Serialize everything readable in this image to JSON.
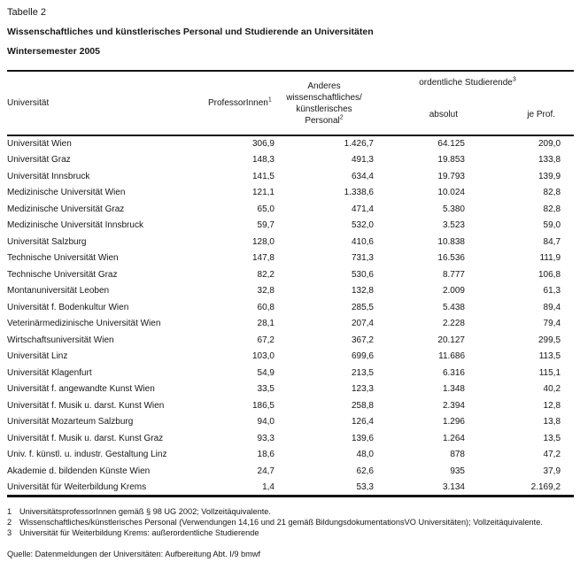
{
  "document": {
    "table_label": "Tabelle 2",
    "title": "Wissenschaftliches und künstlerisches Personal und Studierende an Universitäten",
    "subtitle": "Wintersemester 2005"
  },
  "table": {
    "columns": {
      "university": "Universität",
      "professors": "ProfessorInnen",
      "professors_sup": "1",
      "other_staff_lines": [
        "Anderes",
        "wissenschaftliches/",
        "künstlerisches",
        "Personal"
      ],
      "other_staff_sup": "2",
      "students_group": "ordentliche Studierende",
      "students_group_sup": "3",
      "students_absolut": "absolut",
      "students_je_prof": "je Prof."
    },
    "rows": [
      {
        "name": "Universität Wien",
        "professors": "306,9",
        "other_staff": "1.426,7",
        "students_absolut": "64.125",
        "students_je_prof": "209,0"
      },
      {
        "name": "Universität Graz",
        "professors": "148,3",
        "other_staff": "491,3",
        "students_absolut": "19.853",
        "students_je_prof": "133,8"
      },
      {
        "name": "Universität Innsbruck",
        "professors": "141,5",
        "other_staff": "634,4",
        "students_absolut": "19.793",
        "students_je_prof": "139,9"
      },
      {
        "name": "Medizinische Universität Wien",
        "professors": "121,1",
        "other_staff": "1.338,6",
        "students_absolut": "10.024",
        "students_je_prof": "82,8"
      },
      {
        "name": "Medizinische Universität Graz",
        "professors": "65,0",
        "other_staff": "471,4",
        "students_absolut": "5.380",
        "students_je_prof": "82,8"
      },
      {
        "name": "Medizinische Universität Innsbruck",
        "professors": "59,7",
        "other_staff": "532,0",
        "students_absolut": "3.523",
        "students_je_prof": "59,0"
      },
      {
        "name": "Universität Salzburg",
        "professors": "128,0",
        "other_staff": "410,6",
        "students_absolut": "10.838",
        "students_je_prof": "84,7"
      },
      {
        "name": "Technische Universität Wien",
        "professors": "147,8",
        "other_staff": "731,3",
        "students_absolut": "16.536",
        "students_je_prof": "111,9"
      },
      {
        "name": "Technische Universität Graz",
        "professors": "82,2",
        "other_staff": "530,6",
        "students_absolut": "8.777",
        "students_je_prof": "106,8"
      },
      {
        "name": "Montanuniversität Leoben",
        "professors": "32,8",
        "other_staff": "132,8",
        "students_absolut": "2.009",
        "students_je_prof": "61,3"
      },
      {
        "name": "Universität f. Bodenkultur Wien",
        "professors": "60,8",
        "other_staff": "285,5",
        "students_absolut": "5.438",
        "students_je_prof": "89,4"
      },
      {
        "name": "Veterinärmedizinische Universität Wien",
        "professors": "28,1",
        "other_staff": "207,4",
        "students_absolut": "2.228",
        "students_je_prof": "79,4"
      },
      {
        "name": "Wirtschaftsuniversität Wien",
        "professors": "67,2",
        "other_staff": "367,2",
        "students_absolut": "20.127",
        "students_je_prof": "299,5"
      },
      {
        "name": "Universität Linz",
        "professors": "103,0",
        "other_staff": "699,6",
        "students_absolut": "11.686",
        "students_je_prof": "113,5"
      },
      {
        "name": "Universität Klagenfurt",
        "professors": "54,9",
        "other_staff": "213,5",
        "students_absolut": "6.316",
        "students_je_prof": "115,1"
      },
      {
        "name": "Universität f. angewandte Kunst Wien",
        "professors": "33,5",
        "other_staff": "123,3",
        "students_absolut": "1.348",
        "students_je_prof": "40,2"
      },
      {
        "name": "Universität f. Musik u. darst. Kunst Wien",
        "professors": "186,5",
        "other_staff": "258,8",
        "students_absolut": "2.394",
        "students_je_prof": "12,8"
      },
      {
        "name": "Universität Mozarteum Salzburg",
        "professors": "94,0",
        "other_staff": "126,4",
        "students_absolut": "1.296",
        "students_je_prof": "13,8"
      },
      {
        "name": "Universität f. Musik u. darst. Kunst Graz",
        "professors": "93,3",
        "other_staff": "139,6",
        "students_absolut": "1.264",
        "students_je_prof": "13,5"
      },
      {
        "name": "Univ. f. künstl. u. industr. Gestaltung Linz",
        "professors": "18,6",
        "other_staff": "48,0",
        "students_absolut": "878",
        "students_je_prof": "47,2"
      },
      {
        "name": "Akademie d. bildenden Künste Wien",
        "professors": "24,7",
        "other_staff": "62,6",
        "students_absolut": "935",
        "students_je_prof": "37,9"
      },
      {
        "name": "Universität für Weiterbildung Krems",
        "professors": "1,4",
        "other_staff": "53,3",
        "students_absolut": "3.134",
        "students_je_prof": "2.169,2"
      }
    ]
  },
  "footnotes": [
    {
      "number": "1",
      "text": "UniversitätsprofessorInnen gemäß § 98 UG 2002; Vollzeitäquivalente."
    },
    {
      "number": "2",
      "text": "Wissenschaftliches/künstlerisches Personal (Verwendungen 14,16 und 21 gemäß BildungsdokumentationsVO Universitäten); Vollzeitäquivalente."
    },
    {
      "number": "3",
      "text": "Universität für Weiterbildung Krems: außerordentliche Studierende"
    }
  ],
  "source": "Quelle: Datenmeldungen der Universitäten: Aufbereitung Abt. I/9 bmwf"
}
